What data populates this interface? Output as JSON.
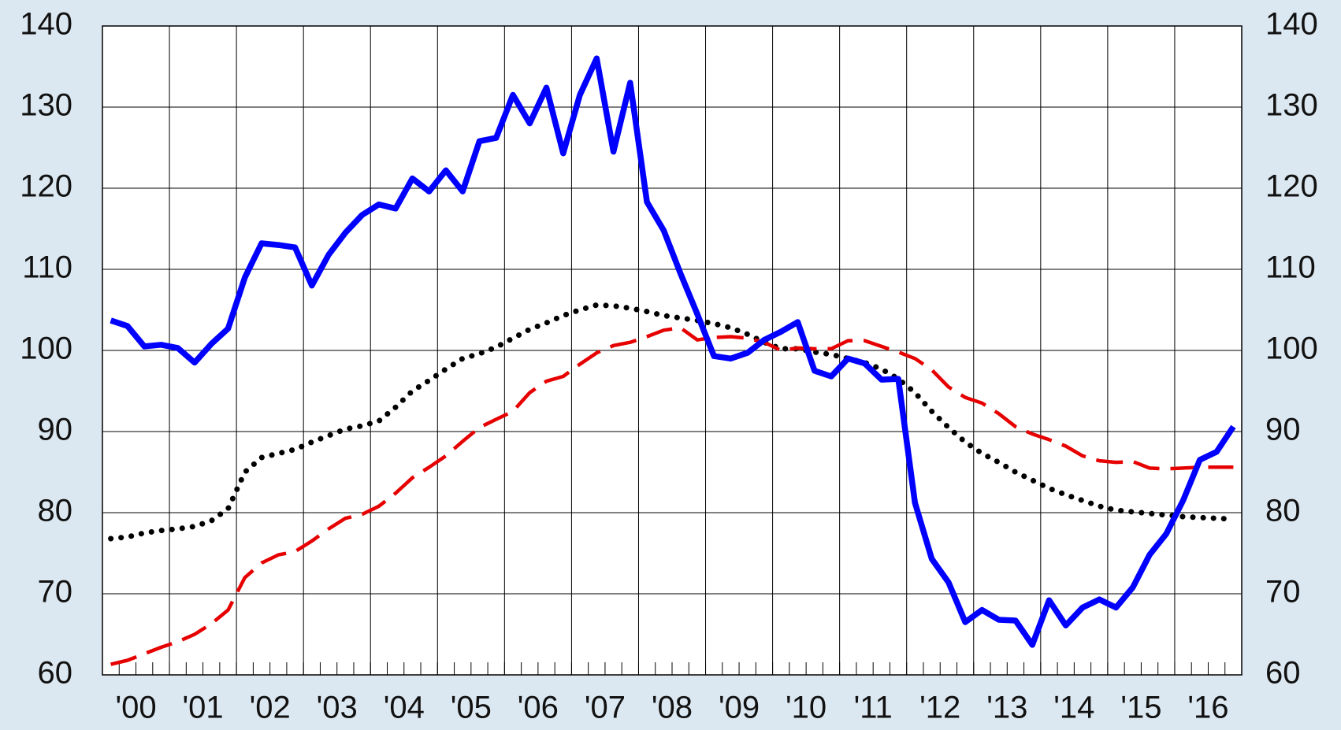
{
  "chart_data": {
    "type": "line",
    "categories": [
      "'00",
      null,
      null,
      null,
      "'01",
      null,
      null,
      null,
      "'02",
      null,
      null,
      null,
      "'03",
      null,
      null,
      null,
      "'04",
      null,
      null,
      null,
      "'05",
      null,
      null,
      null,
      "'06",
      null,
      null,
      null,
      "'07",
      null,
      null,
      null,
      "'08",
      null,
      null,
      null,
      "'09",
      null,
      null,
      null,
      "'10",
      null,
      null,
      null,
      "'11",
      null,
      null,
      null,
      "'12",
      null,
      null,
      null,
      "'13",
      null,
      null,
      null,
      "'14",
      null,
      null,
      null,
      "'15",
      null,
      null,
      null,
      "'16",
      null,
      null,
      null
    ],
    "series": [
      {
        "color": "#000000",
        "style": "dotted",
        "values": [
          76.8,
          77,
          77.5,
          77.8,
          78,
          78.3,
          79,
          80.5,
          85,
          86.8,
          87.3,
          87.8,
          88.7,
          89.5,
          90.3,
          90.7,
          91.3,
          93,
          95,
          96.3,
          97.7,
          99,
          99.6,
          100.4,
          101.5,
          102.6,
          103.4,
          104.3,
          105,
          105.6,
          105.5,
          105.2,
          104.8,
          104.3,
          104,
          103.7,
          103.3,
          102.8,
          102,
          101,
          100.2,
          100.2,
          99.8,
          99.5,
          99,
          98.5,
          97.7,
          96.5,
          94.8,
          92.5,
          90.5,
          88.7,
          87.3,
          86.2,
          85,
          84,
          83,
          82.2,
          81.5,
          80.8,
          80.3,
          80.1,
          79.9,
          79.7,
          79.5,
          79.4,
          79.3,
          79.2
        ]
      },
      {
        "color": "#e60000",
        "style": "dashed",
        "values": [
          61.3,
          61.8,
          62.6,
          63.4,
          64.1,
          65,
          66.3,
          68,
          72,
          73.8,
          74.8,
          75.2,
          76.5,
          78,
          79.3,
          79.8,
          80.8,
          82.4,
          84.3,
          85.6,
          87,
          88.8,
          90.5,
          91.5,
          92.5,
          94.8,
          96.2,
          96.8,
          98.3,
          99.7,
          100.6,
          101,
          101.7,
          102.5,
          102.8,
          101.3,
          101.6,
          101.7,
          101.5,
          101,
          100,
          100.3,
          100.2,
          100.2,
          101.2,
          101.2,
          100.5,
          99.8,
          99,
          97.6,
          95.5,
          94.2,
          93.5,
          92.2,
          90.6,
          89.7,
          89,
          88.2,
          87,
          86.4,
          86.2,
          86.3,
          85.5,
          85.4,
          85.5,
          85.6,
          85.6,
          85.6
        ]
      },
      {
        "color": "#0000ff",
        "style": "solid",
        "values": [
          103.7,
          103,
          100.5,
          100.7,
          100.3,
          98.5,
          100.8,
          102.7,
          109,
          113.2,
          113,
          112.7,
          108,
          111.8,
          114.5,
          116.7,
          118,
          117.5,
          121.2,
          119.6,
          122.2,
          119.6,
          125.8,
          126.2,
          131.5,
          128,
          132.4,
          124.3,
          131.5,
          136,
          124.5,
          133,
          118.3,
          114.8,
          109.5,
          104.5,
          99.3,
          99,
          99.7,
          101.3,
          102.3,
          103.5,
          97.5,
          96.8,
          99,
          98.4,
          96.4,
          96.5,
          81.2,
          74.3,
          71.4,
          66.5,
          68,
          66.8,
          66.7,
          63.7,
          69.2,
          66.1,
          68.3,
          69.3,
          68.3,
          70.8,
          74.8,
          77.4,
          81.5,
          86.5,
          87.5,
          90.6
        ]
      }
    ],
    "ylim": [
      60,
      140
    ],
    "yticks": [
      60,
      70,
      80,
      90,
      100,
      110,
      120,
      130,
      140
    ],
    "y2lim": [
      60,
      140
    ],
    "y2ticks": [
      60,
      70,
      80,
      90,
      100,
      110,
      120,
      130,
      140
    ],
    "grid": true
  }
}
